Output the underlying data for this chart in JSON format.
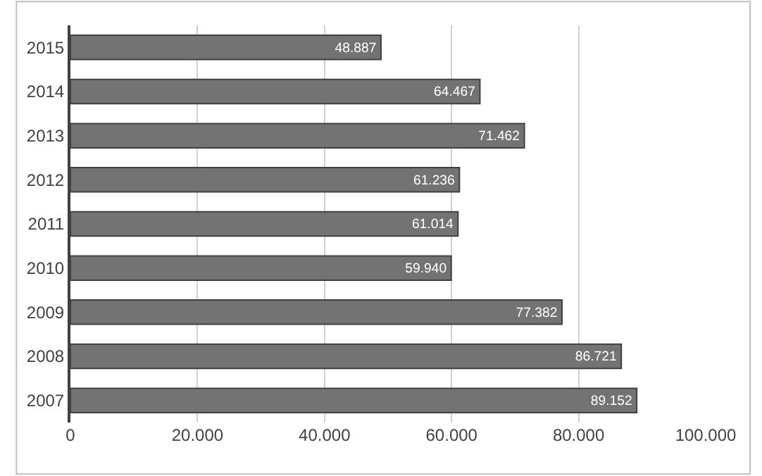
{
  "chart_data": {
    "type": "bar",
    "orientation": "horizontal",
    "categories": [
      "2015",
      "2014",
      "2013",
      "2012",
      "2011",
      "2010",
      "2009",
      "2008",
      "2007"
    ],
    "values": [
      48887,
      64467,
      71462,
      61236,
      61014,
      59940,
      77382,
      86721,
      89152
    ],
    "value_labels": [
      "48.887",
      "64.467",
      "71.462",
      "61.236",
      "61.014",
      "59.940",
      "77.382",
      "86.721",
      "89.152"
    ],
    "color": "#737373",
    "xlim": [
      0,
      100000
    ],
    "xticks": [
      {
        "value": 0,
        "label": "0"
      },
      {
        "value": 20000,
        "label": "20.000"
      },
      {
        "value": 40000,
        "label": "40.000"
      },
      {
        "value": 60000,
        "label": "60.000"
      },
      {
        "value": 80000,
        "label": "80.000"
      },
      {
        "value": 100000,
        "label": "100.000"
      }
    ],
    "grid": "x",
    "legend": false
  }
}
